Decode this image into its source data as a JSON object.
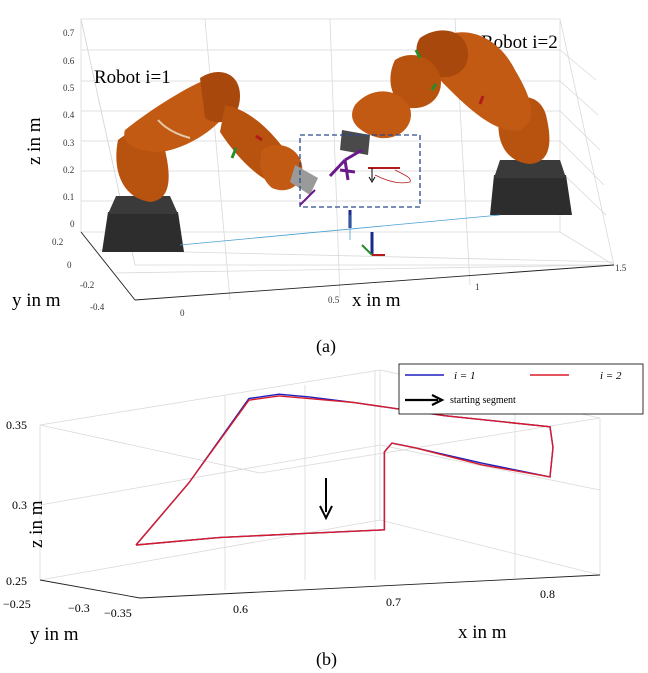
{
  "panel_a": {
    "caption": "(a)",
    "robot1_label": "Robot i=1",
    "robot2_label": "Robot i=2",
    "xlabel": "x in m",
    "ylabel": "y in m",
    "zlabel": "z in m",
    "zticks": [
      "0.7",
      "0.6",
      "0.5",
      "0.4",
      "0.3",
      "0.2",
      "0.1",
      "0"
    ],
    "yticks": [
      "0.2",
      "0",
      "-0.2",
      "-0.4"
    ],
    "xticks": [
      "0",
      "0.5",
      "1",
      "1.5"
    ],
    "colors": {
      "robot_orange": "#b8520f",
      "base": "#2b2b2b",
      "box": "#2a4a8a"
    }
  },
  "panel_b": {
    "caption": "(b)",
    "xlabel": "x in m",
    "ylabel": "y in m",
    "zlabel": "z in m",
    "legend": {
      "series1": "i = 1",
      "series2": "i = 2",
      "arrow": "starting segment"
    },
    "zticks": [
      "0.35",
      "0.3",
      "0.25"
    ],
    "yticks": [
      "−0.25",
      "−0.3",
      "−0.35"
    ],
    "xticks": [
      "0.6",
      "0.7",
      "0.8"
    ],
    "colors": {
      "series1": "#1f1fbf",
      "series2": "#d81b2a"
    }
  },
  "chart_data": {
    "type": "line",
    "title": "",
    "xlabel": "x in m",
    "ylabel": "z in m",
    "series": [
      {
        "name": "i = 1",
        "x": [
          0.545,
          0.58,
          0.62,
          0.64,
          0.66,
          0.69,
          0.75,
          0.82,
          0.822,
          0.82,
          0.775,
          0.73,
          0.715,
          0.71,
          0.71,
          0.65,
          0.6,
          0.545
        ],
        "z": [
          0.275,
          0.31,
          0.358,
          0.36,
          0.358,
          0.354,
          0.345,
          0.337,
          0.325,
          0.308,
          0.317,
          0.327,
          0.33,
          0.325,
          0.28,
          0.279,
          0.278,
          0.275
        ]
      },
      {
        "name": "i = 2",
        "x": [
          0.545,
          0.58,
          0.62,
          0.64,
          0.66,
          0.69,
          0.75,
          0.82,
          0.822,
          0.82,
          0.775,
          0.73,
          0.715,
          0.71,
          0.71,
          0.65,
          0.6,
          0.545
        ],
        "z": [
          0.275,
          0.31,
          0.357,
          0.359,
          0.357,
          0.354,
          0.345,
          0.337,
          0.325,
          0.308,
          0.316,
          0.327,
          0.33,
          0.325,
          0.28,
          0.279,
          0.278,
          0.275
        ]
      }
    ]
  }
}
